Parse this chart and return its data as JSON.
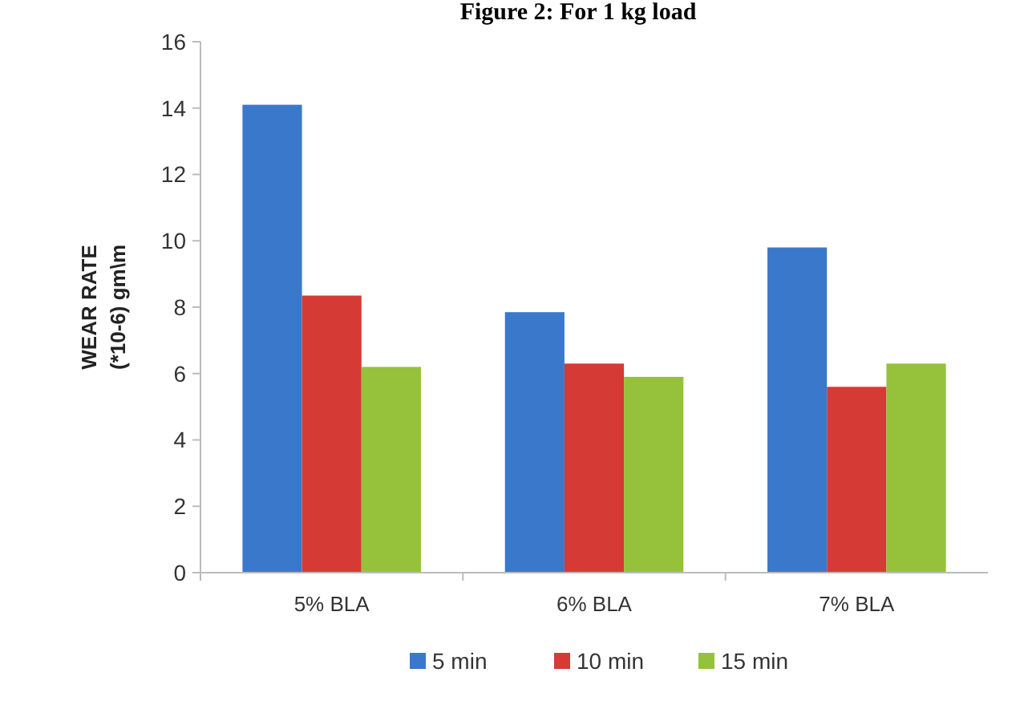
{
  "chart_data": {
    "type": "bar",
    "title": "Figure 2: For 1 kg load",
    "ylabel": "WEAR RATE\n(*10-6) gm\\m",
    "categories": [
      "5% BLA",
      "6% BLA",
      "7% BLA"
    ],
    "series": [
      {
        "name": "5 min",
        "color": "#3a78cc",
        "values": [
          14.1,
          7.85,
          9.8
        ]
      },
      {
        "name": "10 min",
        "color": "#d63a35",
        "values": [
          8.35,
          6.3,
          5.6
        ]
      },
      {
        "name": "15 min",
        "color": "#95c23a",
        "values": [
          6.2,
          5.9,
          6.3
        ]
      }
    ],
    "ylim": [
      0,
      16
    ],
    "yticks": [
      0,
      2,
      4,
      6,
      8,
      10,
      12,
      14,
      16
    ],
    "grid": false,
    "legend": "bottom"
  }
}
